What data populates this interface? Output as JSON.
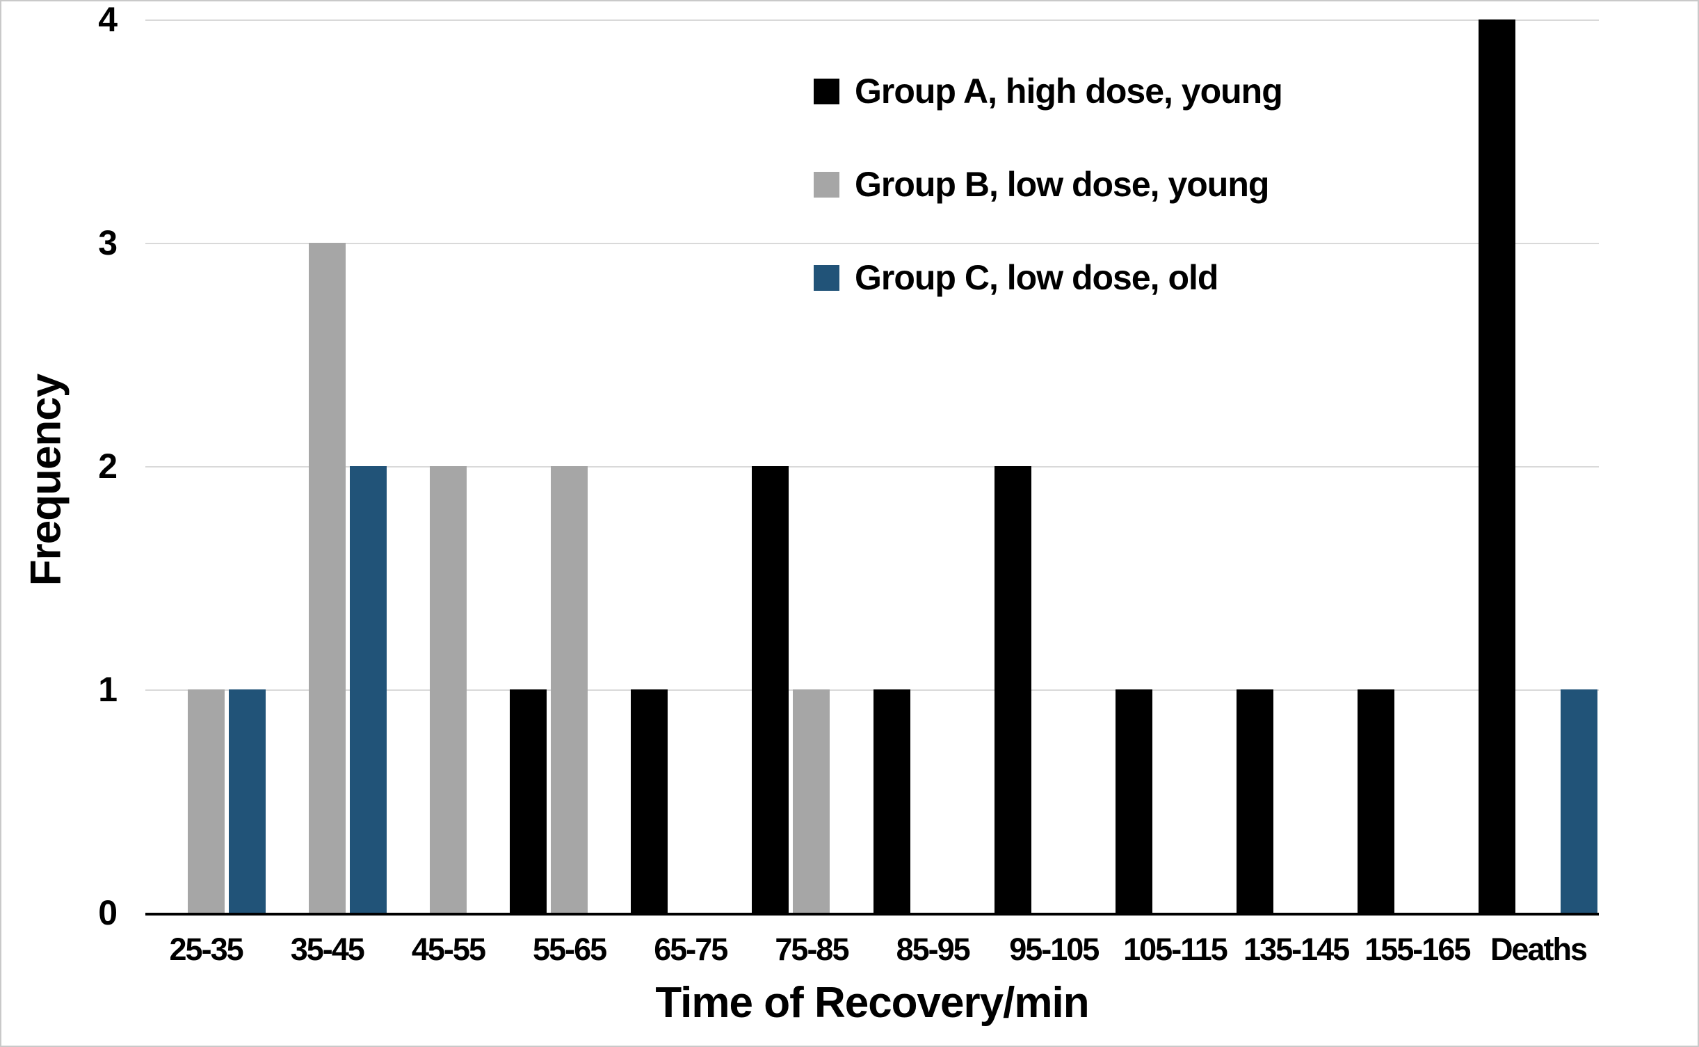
{
  "chart_data": {
    "type": "bar",
    "title": "",
    "xlabel": "Time of Recovery/min",
    "ylabel": "Frequency",
    "ylim": [
      0,
      4
    ],
    "yticks": [
      0,
      1,
      2,
      3,
      4
    ],
    "grid": "horizontal",
    "gridline_color": "#d9d9d9",
    "axis_line_color": "#000000",
    "legend_position": "inside-top-center",
    "categories": [
      "25-35",
      "35-45",
      "45-55",
      "55-65",
      "65-75",
      "75-85",
      "85-95",
      "95-105",
      "105-115",
      "135-145",
      "155-165",
      "Deaths"
    ],
    "series": [
      {
        "name": "Group A, high dose, young",
        "color": "#000000",
        "values": [
          0,
          0,
          0,
          1,
          1,
          2,
          1,
          2,
          1,
          1,
          1,
          4
        ]
      },
      {
        "name": "Group B, low dose, young",
        "color": "#a6a6a6",
        "values": [
          1,
          3,
          2,
          2,
          0,
          1,
          0,
          0,
          0,
          0,
          0,
          0
        ]
      },
      {
        "name": "Group C, low dose, old",
        "color": "#215378",
        "values": [
          1,
          2,
          0,
          0,
          0,
          0,
          0,
          0,
          0,
          0,
          0,
          1
        ]
      }
    ]
  }
}
